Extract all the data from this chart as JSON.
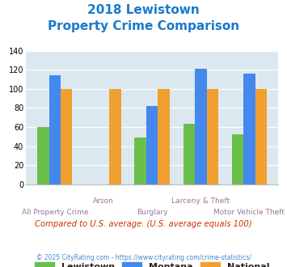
{
  "title_line1": "2018 Lewistown",
  "title_line2": "Property Crime Comparison",
  "title_color": "#1a7acc",
  "categories": [
    "All Property Crime",
    "Arson",
    "Burglary",
    "Larceny & Theft",
    "Motor Vehicle Theft"
  ],
  "cat_labels_top": [
    "",
    "Arson",
    "",
    "Larceny & Theft",
    ""
  ],
  "cat_labels_bot": [
    "All Property Crime",
    "",
    "Burglary",
    "",
    "Motor Vehicle Theft"
  ],
  "lewistown": [
    60,
    0,
    49,
    63,
    52
  ],
  "montana": [
    114,
    0,
    82,
    121,
    116
  ],
  "national": [
    100,
    100,
    100,
    100,
    100
  ],
  "color_lewistown": "#6abf4b",
  "color_montana": "#4488ee",
  "color_national": "#f0a030",
  "bg_color": "#dce8ef",
  "ylim": [
    0,
    140
  ],
  "yticks": [
    0,
    20,
    40,
    60,
    80,
    100,
    120,
    140
  ],
  "legend_labels": [
    "Lewistown",
    "Montana",
    "National"
  ],
  "note_text": "Compared to U.S. average. (U.S. average equals 100)",
  "note_color": "#cc3300",
  "footer_text": "© 2025 CityRating.com - https://www.cityrating.com/crime-statistics/",
  "footer_color": "#4488cc",
  "label_color": "#997799"
}
